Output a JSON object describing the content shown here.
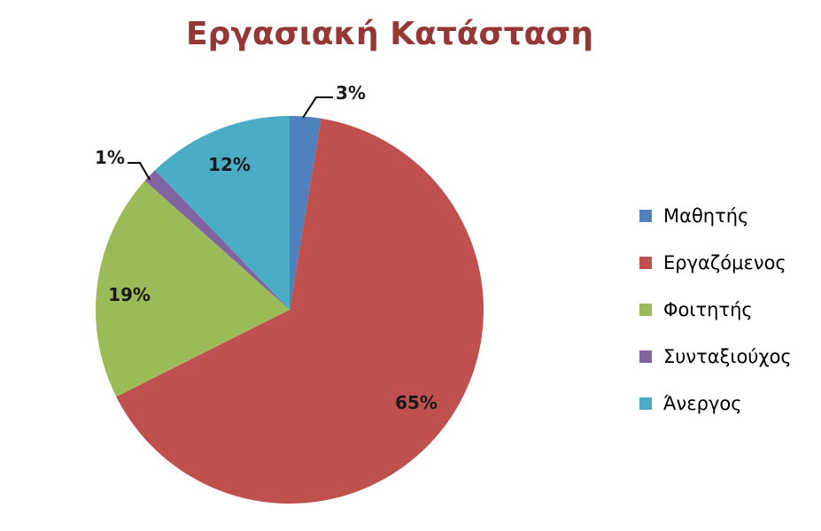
{
  "chart_data": {
    "type": "pie",
    "title": "Εργασιακή Κατάσταση",
    "legend_position": "right",
    "slices": [
      {
        "name": "Μαθητής",
        "value": 2.6,
        "label": "3%",
        "color": "#4F81BD"
      },
      {
        "name": "Εργαζόμενος",
        "value": 65,
        "label": "65%",
        "color": "#C0504D"
      },
      {
        "name": "Φοιτητής",
        "value": 19,
        "label": "19%",
        "color": "#9BBB59"
      },
      {
        "name": "Συνταξιούχος",
        "value": 1.2,
        "label": "1%",
        "color": "#8064A2"
      },
      {
        "name": "Άνεργος",
        "value": 12.2,
        "label": "12%",
        "color": "#4BACC6"
      }
    ]
  }
}
